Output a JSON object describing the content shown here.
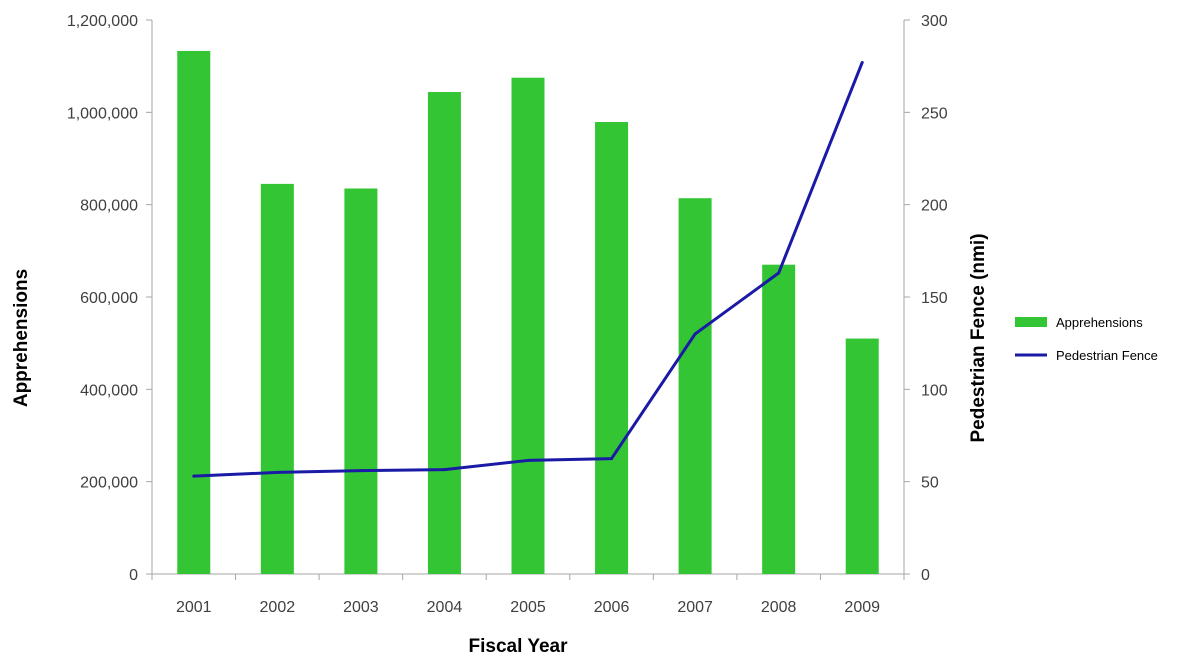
{
  "chart_data": {
    "type": "bar+line",
    "categories": [
      "2001",
      "2002",
      "2003",
      "2004",
      "2005",
      "2006",
      "2007",
      "2008",
      "2009"
    ],
    "series": [
      {
        "name": "Apprehensions",
        "type": "bar",
        "axis": "left",
        "color": "#33c533",
        "values": [
          1133000,
          845000,
          835000,
          1044000,
          1075000,
          979000,
          814000,
          670000,
          510000
        ]
      },
      {
        "name": "Pedestrian Fence",
        "type": "line",
        "axis": "right",
        "color": "#1a1aa6",
        "values": [
          53,
          55,
          56,
          56.5,
          61.5,
          62.5,
          130,
          163,
          277
        ]
      }
    ],
    "xlabel": "Fiscal Year",
    "ylabel": "Apprehensions",
    "y2label": "Pedestrian Fence (nmi)",
    "ylim": [
      0,
      1200000
    ],
    "y2lim": [
      0,
      300
    ],
    "yticks": [
      "0",
      "200,000",
      "400,000",
      "600,000",
      "800,000",
      "1,000,000",
      "1,200,000"
    ],
    "y2ticks": [
      "0",
      "50",
      "100",
      "150",
      "200",
      "250",
      "300"
    ],
    "grid": false,
    "legend": "right"
  }
}
